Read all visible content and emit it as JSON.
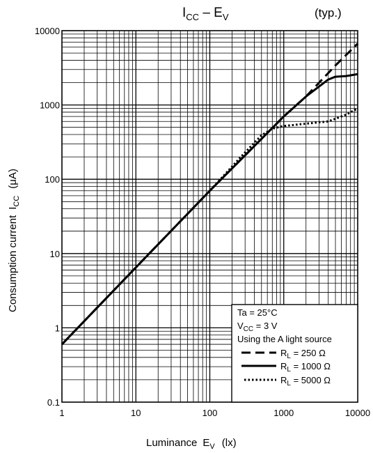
{
  "chart_data": {
    "type": "line",
    "title_main": "I",
    "title_sub": "CC",
    "title_dash": " – E",
    "title_sub2": "V",
    "title_note": "(typ.)",
    "xlabel_main": "Luminance",
    "xlabel_sym": "E",
    "xlabel_sub": "V",
    "xlabel_unit": "(lx)",
    "ylabel_main": "Consumption current",
    "ylabel_sym": "I",
    "ylabel_sub": "CC",
    "ylabel_unit": "(μA)",
    "x_scale": "log",
    "y_scale": "log",
    "xlim": [
      1,
      10000
    ],
    "ylim": [
      0.1,
      10000
    ],
    "x_ticks": [
      "1",
      "10",
      "100",
      "1000",
      "10000"
    ],
    "y_ticks": [
      "0.1",
      "1",
      "10",
      "100",
      "1000",
      "10000"
    ],
    "grid": true,
    "legend_position": "bottom-right",
    "conditions": {
      "ta": "Ta = 25°C",
      "vcc_main": "V",
      "vcc_sub": "CC",
      "vcc_rest": " = 3 V",
      "source": "Using the A light source"
    },
    "series": [
      {
        "legend_main": "R",
        "legend_sub": "L",
        "legend_rest": " = 250 Ω",
        "style": "dashed",
        "x": [
          1,
          10,
          100,
          1000,
          2000,
          5000,
          10000
        ],
        "y": [
          0.6,
          6.5,
          70,
          700,
          1300,
          3400,
          6700
        ]
      },
      {
        "legend_main": "R",
        "legend_sub": "L",
        "legend_rest": " = 1000 Ω",
        "style": "solid",
        "x": [
          1,
          10,
          100,
          1000,
          2000,
          4000,
          5000,
          7000,
          10000
        ],
        "y": [
          0.6,
          6.5,
          70,
          700,
          1300,
          2200,
          2400,
          2450,
          2600
        ]
      },
      {
        "legend_main": "R",
        "legend_sub": "L",
        "legend_rest": " = 5000 Ω",
        "style": "dotted",
        "x": [
          1,
          10,
          100,
          300,
          500,
          700,
          1000,
          2000,
          4000,
          7000,
          10000
        ],
        "y": [
          0.6,
          6.5,
          70,
          230,
          390,
          480,
          520,
          560,
          600,
          740,
          900
        ]
      }
    ]
  }
}
